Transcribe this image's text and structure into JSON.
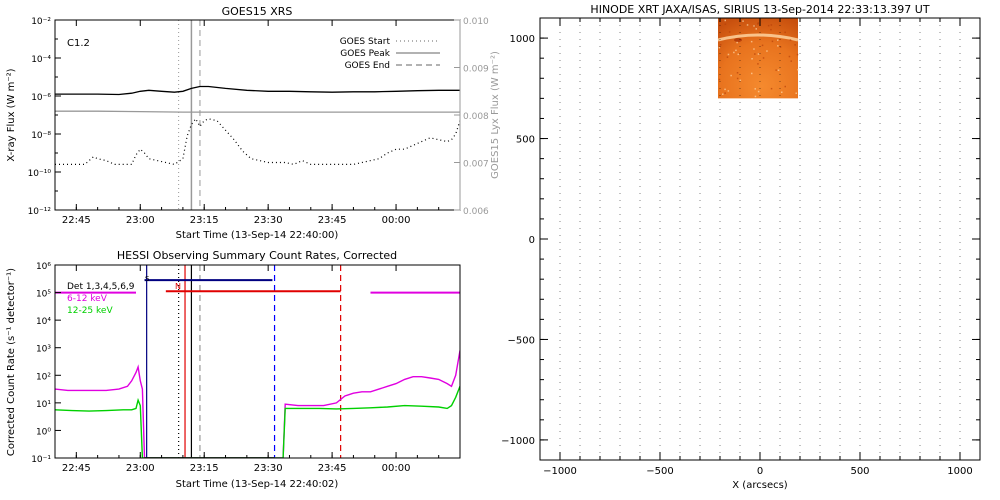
{
  "chart_data": [
    {
      "id": "goes",
      "type": "line",
      "title": "GOES15 XRS",
      "xlabel": "Start Time (13-Sep-14 22:40:00)",
      "ylabel": "X-ray Flux (W m⁻²)",
      "y2label": "GOES15 Lyx Flux (W m⁻²)",
      "x_ticks": [
        "22:45",
        "23:00",
        "23:15",
        "23:30",
        "23:45",
        "00:00"
      ],
      "x_tick_minutes": [
        5,
        20,
        35,
        50,
        65,
        80
      ],
      "xlim_minutes": [
        0,
        95
      ],
      "ylim": [
        -12,
        -2
      ],
      "y_scale": "log",
      "y_ticks": [
        "10⁻¹²",
        "10⁻¹⁰",
        "10⁻⁸",
        "10⁻⁶",
        "10⁻⁴",
        "10⁻²"
      ],
      "y_tick_exponents": [
        -12,
        -10,
        -8,
        -6,
        -4,
        -2
      ],
      "y2lim": [
        0.006,
        0.01
      ],
      "y2_ticks": [
        "0.006",
        "0.007",
        "0.008",
        "0.009",
        "0.010"
      ],
      "y2_tick_values": [
        0.006,
        0.007,
        0.008,
        0.009,
        0.01
      ],
      "annotation": "C1.2",
      "legend": [
        {
          "label": "GOES Start",
          "style": "dotted"
        },
        {
          "label": "GOES Peak",
          "style": "solid"
        },
        {
          "label": "GOES End",
          "style": "dashed"
        }
      ],
      "legend_position": "top-right",
      "event_lines_minutes": {
        "start": 29,
        "peak": 32,
        "end": 34
      },
      "series": [
        {
          "color": "#000000",
          "style": "solid",
          "x": [
            0,
            5,
            10,
            15,
            18,
            20,
            22,
            25,
            28,
            30,
            32,
            34,
            36,
            40,
            45,
            50,
            55,
            60,
            65,
            70,
            75,
            80,
            85,
            90,
            95
          ],
          "y": [
            -5.9,
            -5.9,
            -5.9,
            -5.92,
            -5.85,
            -5.75,
            -5.7,
            -5.75,
            -5.8,
            -5.75,
            -5.6,
            -5.5,
            -5.5,
            -5.6,
            -5.7,
            -5.75,
            -5.75,
            -5.78,
            -5.8,
            -5.78,
            -5.78,
            -5.75,
            -5.72,
            -5.7,
            -5.7
          ]
        },
        {
          "color": "#999999",
          "style": "solid",
          "x": [
            0,
            10,
            20,
            30,
            40,
            50,
            60,
            70,
            80,
            90,
            95
          ],
          "y": [
            -6.8,
            -6.8,
            -6.82,
            -6.85,
            -6.85,
            -6.85,
            -6.85,
            -6.85,
            -6.85,
            -6.85,
            -6.85
          ]
        },
        {
          "color": "#000000",
          "style": "dotted",
          "x": [
            0,
            5,
            7,
            8,
            9,
            10,
            12,
            14,
            16,
            18,
            19,
            20,
            21,
            22,
            24,
            26,
            28,
            30,
            31,
            32,
            33,
            34,
            35,
            36,
            38,
            40,
            42,
            44,
            46,
            48,
            50,
            52,
            54,
            56,
            57,
            58,
            60,
            62,
            64,
            66,
            68,
            70,
            72,
            74,
            76,
            78,
            80,
            82,
            84,
            86,
            88,
            90,
            92,
            93,
            94,
            95
          ],
          "y": [
            -9.6,
            -9.6,
            -9.6,
            -9.4,
            -9.2,
            -9.3,
            -9.4,
            -9.6,
            -9.6,
            -9.6,
            -9.1,
            -8.8,
            -9.0,
            -9.3,
            -9.4,
            -9.5,
            -9.6,
            -9.3,
            -8.1,
            -7.5,
            -7.2,
            -7.6,
            -7.3,
            -7.2,
            -7.3,
            -7.8,
            -8.3,
            -8.9,
            -9.3,
            -9.4,
            -9.5,
            -9.5,
            -9.5,
            -9.6,
            -9.5,
            -9.4,
            -9.6,
            -9.6,
            -9.6,
            -9.6,
            -9.6,
            -9.6,
            -9.5,
            -9.4,
            -9.3,
            -9.0,
            -8.8,
            -8.8,
            -8.6,
            -8.4,
            -8.2,
            -8.3,
            -8.4,
            -8.3,
            -8.0,
            -7.3
          ]
        }
      ]
    },
    {
      "id": "hessi",
      "type": "line",
      "title": "HESSI Observing Summary Count Rates, Corrected",
      "xlabel": "Start Time (13-Sep-14 22:40:02)",
      "ylabel": "Corrected Count Rate (s⁻¹ detector⁻¹)",
      "x_ticks": [
        "22:45",
        "23:00",
        "23:15",
        "23:30",
        "23:45",
        "00:00"
      ],
      "x_tick_minutes": [
        5,
        20,
        35,
        50,
        65,
        80
      ],
      "xlim_minutes": [
        0,
        95
      ],
      "ylim": [
        -1,
        6
      ],
      "y_scale": "log",
      "y_ticks": [
        "10⁻¹",
        "10⁰",
        "10¹",
        "10²",
        "10³",
        "10⁴",
        "10⁵",
        "10⁶"
      ],
      "y_tick_exponents": [
        -1,
        0,
        1,
        2,
        3,
        4,
        5,
        6
      ],
      "legend": [
        {
          "label": "Det 1,3,4,5,6,9",
          "superscript": "S",
          "color": "#000000"
        },
        {
          "label": "6-12 keV",
          "color": "#e000e0"
        },
        {
          "label": "12-25 keV",
          "color": "#00d000"
        }
      ],
      "legend_position": "top-left",
      "annotation": "N",
      "segments": [
        {
          "color": "#000080",
          "x": [
            21,
            51
          ],
          "y": 5.45
        },
        {
          "color": "#e00000",
          "x": [
            26,
            67
          ],
          "y": 5.05
        },
        {
          "color": "#e000e0",
          "x": [
            0,
            19
          ],
          "y": 5.0
        },
        {
          "color": "#e000e0",
          "x": [
            74,
            95
          ],
          "y": 5.0
        }
      ],
      "vlines": [
        {
          "color": "#000080",
          "style": "solid",
          "x": 21.5
        },
        {
          "color": "#000000",
          "style": "dotted",
          "x": 29
        },
        {
          "color": "#e00000",
          "style": "solid",
          "x": 30.5
        },
        {
          "color": "#000000",
          "style": "solid",
          "x": 32
        },
        {
          "color": "#999999",
          "style": "dashed",
          "x": 34
        },
        {
          "color": "#0000ff",
          "style": "dashed",
          "x": 51.5
        },
        {
          "color": "#e00000",
          "style": "dashed",
          "x": 67
        }
      ],
      "series": [
        {
          "name": "6-12 keV",
          "color": "#e000e0",
          "x": [
            0,
            3,
            6,
            9,
            12,
            15,
            17,
            18,
            19,
            19.5,
            20,
            20.5,
            21,
            53.5,
            54,
            57,
            60,
            63,
            66,
            68,
            70,
            72,
            74,
            76,
            78,
            80,
            82,
            84,
            86,
            88,
            90,
            92,
            93,
            94,
            95
          ],
          "y": [
            1.5,
            1.45,
            1.45,
            1.45,
            1.45,
            1.5,
            1.6,
            1.8,
            2.1,
            2.3,
            1.8,
            1.5,
            -1.0,
            -1.0,
            0.95,
            0.9,
            0.9,
            0.9,
            1.0,
            1.25,
            1.35,
            1.4,
            1.4,
            1.5,
            1.6,
            1.7,
            1.85,
            1.95,
            1.95,
            1.9,
            1.85,
            1.7,
            1.6,
            2.0,
            2.9
          ]
        },
        {
          "name": "12-25 keV",
          "color": "#00d000",
          "x": [
            0,
            4,
            8,
            12,
            16,
            18,
            19,
            19.5,
            20,
            20.5,
            21,
            53.5,
            54,
            58,
            62,
            66,
            70,
            74,
            78,
            82,
            86,
            90,
            92,
            93,
            94,
            95
          ],
          "y": [
            0.75,
            0.72,
            0.7,
            0.72,
            0.75,
            0.75,
            0.8,
            1.1,
            0.9,
            -1.0,
            -1.0,
            -1.0,
            0.8,
            0.8,
            0.8,
            0.78,
            0.8,
            0.82,
            0.85,
            0.9,
            0.88,
            0.85,
            0.8,
            0.9,
            1.2,
            1.6
          ]
        },
        {
          "name": "Det 1,3,4,5,6,9",
          "color": "#000000",
          "x": [
            21,
            22,
            51,
            51.5
          ],
          "y": [
            -1.0,
            -1.0,
            -1.0,
            -1.0
          ]
        }
      ]
    },
    {
      "id": "xrt",
      "type": "image",
      "title": "HINODE XRT JAXA/ISAS, SIRIUS 13-Sep-2014 22:33:13.397 UT",
      "xlabel": "X (arcsecs)",
      "ylabel": "",
      "xlim": [
        -1100,
        1100
      ],
      "ylim": [
        -1100,
        1100
      ],
      "x_ticks": [
        "−1000",
        "−500",
        "0",
        "500",
        "1000"
      ],
      "x_tick_values": [
        -1000,
        -500,
        0,
        500,
        1000
      ],
      "y_ticks": [
        "−1000",
        "−500",
        "0",
        "500",
        "1000"
      ],
      "y_tick_values": [
        -1000,
        -500,
        0,
        500,
        1000
      ],
      "image_extent": {
        "x": [
          -210,
          190
        ],
        "y": [
          700,
          1100
        ]
      },
      "image_colors": {
        "base": "#e8731e",
        "dark": "#b8400a",
        "bright": "#ffd9a8"
      }
    }
  ]
}
